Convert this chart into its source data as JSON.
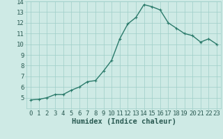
{
  "x": [
    0,
    1,
    2,
    3,
    4,
    5,
    6,
    7,
    8,
    9,
    10,
    11,
    12,
    13,
    14,
    15,
    16,
    17,
    18,
    19,
    20,
    21,
    22,
    23
  ],
  "y": [
    4.8,
    4.85,
    5.0,
    5.3,
    5.3,
    5.7,
    6.0,
    6.5,
    6.6,
    7.5,
    8.5,
    10.5,
    11.9,
    12.5,
    13.7,
    13.5,
    13.2,
    12.0,
    11.5,
    11.0,
    10.8,
    10.2,
    10.5,
    10.0
  ],
  "xlabel": "Humidex (Indice chaleur)",
  "ylim": [
    4,
    14
  ],
  "xlim": [
    -0.5,
    23.5
  ],
  "yticks": [
    5,
    6,
    7,
    8,
    9,
    10,
    11,
    12,
    13,
    14
  ],
  "xticks": [
    0,
    1,
    2,
    3,
    4,
    5,
    6,
    7,
    8,
    9,
    10,
    11,
    12,
    13,
    14,
    15,
    16,
    17,
    18,
    19,
    20,
    21,
    22,
    23
  ],
  "line_color": "#2a7a6a",
  "bg_color": "#ceeae5",
  "grid_color": "#9ecec8",
  "text_color": "#2a5a52",
  "xlabel_fontsize": 7.5,
  "tick_fontsize": 6.5,
  "line_width": 1.0,
  "marker_size": 3.0
}
